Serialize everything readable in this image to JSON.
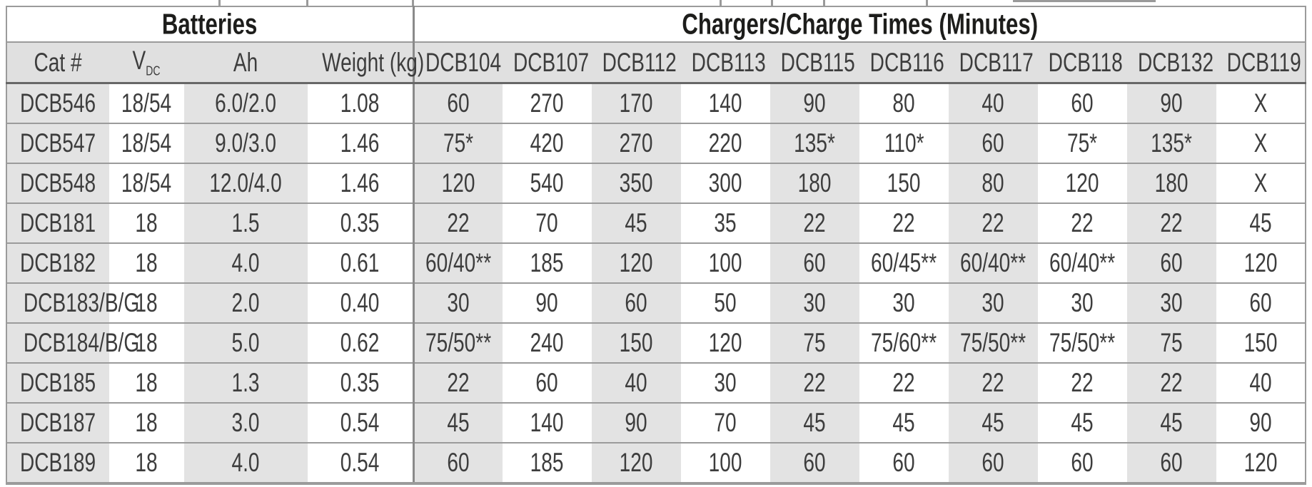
{
  "table": {
    "sections": [
      {
        "label": "Batteries",
        "colspan": 4
      },
      {
        "label": "Chargers/Charge Times (Minutes)",
        "colspan": 10
      }
    ],
    "battery_columns": [
      {
        "key": "cat",
        "label": "Cat #"
      },
      {
        "key": "vdc",
        "label": "V",
        "sub": "DC"
      },
      {
        "key": "ah",
        "label": "Ah"
      },
      {
        "key": "weight",
        "label": "Weight (kg)"
      }
    ],
    "charger_columns": [
      "DCB104",
      "DCB107",
      "DCB112",
      "DCB113",
      "DCB115",
      "DCB116",
      "DCB117",
      "DCB118",
      "DCB132",
      "DCB119"
    ],
    "rows": [
      {
        "cat": "DCB546",
        "vdc": "18/54",
        "ah": "6.0/2.0",
        "weight": "1.08",
        "times": [
          "60",
          "270",
          "170",
          "140",
          "90",
          "80",
          "40",
          "60",
          "90",
          "X"
        ]
      },
      {
        "cat": "DCB547",
        "vdc": "18/54",
        "ah": "9.0/3.0",
        "weight": "1.46",
        "times": [
          "75*",
          "420",
          "270",
          "220",
          "135*",
          "110*",
          "60",
          "75*",
          "135*",
          "X"
        ]
      },
      {
        "cat": "DCB548",
        "vdc": "18/54",
        "ah": "12.0/4.0",
        "weight": "1.46",
        "times": [
          "120",
          "540",
          "350",
          "300",
          "180",
          "150",
          "80",
          "120",
          "180",
          "X"
        ]
      },
      {
        "cat": "DCB181",
        "vdc": "18",
        "ah": "1.5",
        "weight": "0.35",
        "times": [
          "22",
          "70",
          "45",
          "35",
          "22",
          "22",
          "22",
          "22",
          "22",
          "45"
        ]
      },
      {
        "cat": "DCB182",
        "vdc": "18",
        "ah": "4.0",
        "weight": "0.61",
        "times": [
          "60/40**",
          "185",
          "120",
          "100",
          "60",
          "60/45**",
          "60/40**",
          "60/40**",
          "60",
          "120"
        ]
      },
      {
        "cat": "DCB183/B/G",
        "vdc": "18",
        "ah": "2.0",
        "weight": "0.40",
        "times": [
          "30",
          "90",
          "60",
          "50",
          "30",
          "30",
          "30",
          "30",
          "30",
          "60"
        ]
      },
      {
        "cat": "DCB184/B/G",
        "vdc": "18",
        "ah": "5.0",
        "weight": "0.62",
        "times": [
          "75/50**",
          "240",
          "150",
          "120",
          "75",
          "75/60**",
          "75/50**",
          "75/50**",
          "75",
          "150"
        ]
      },
      {
        "cat": "DCB185",
        "vdc": "18",
        "ah": "1.3",
        "weight": "0.35",
        "times": [
          "22",
          "60",
          "40",
          "30",
          "22",
          "22",
          "22",
          "22",
          "22",
          "40"
        ]
      },
      {
        "cat": "DCB187",
        "vdc": "18",
        "ah": "3.0",
        "weight": "0.54",
        "times": [
          "45",
          "140",
          "90",
          "70",
          "45",
          "45",
          "45",
          "45",
          "45",
          "90"
        ]
      },
      {
        "cat": "DCB189",
        "vdc": "18",
        "ah": "4.0",
        "weight": "0.54",
        "times": [
          "60",
          "185",
          "120",
          "100",
          "60",
          "60",
          "60",
          "60",
          "60",
          "120"
        ]
      }
    ]
  },
  "colors": {
    "shaded_cell": "#e3e3e3",
    "header_row_bg": "#e0e0e0",
    "row_border": "#9b9b9b",
    "header_bottom_border": "#676767",
    "section_divider": "#8a8a8a",
    "text": "#3d3d3d",
    "section_header_text": "#1d1d1b"
  }
}
